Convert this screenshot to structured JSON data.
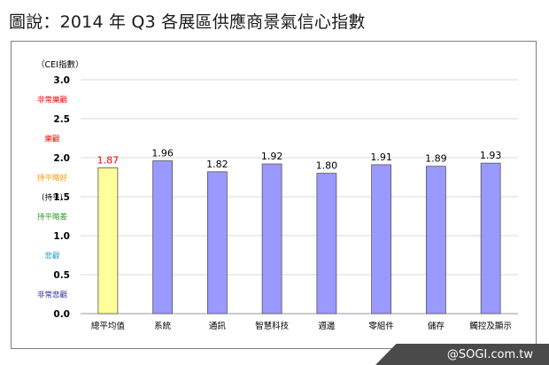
{
  "caption": "圖說：2014 年 Q3 各展區供應商景氣信心指數",
  "watermark": "@SOGI.com.tw",
  "chart_data": {
    "type": "bar",
    "title": "",
    "xlabel": "",
    "ylabel": "（CEI指數）",
    "ylim": [
      0,
      3.0
    ],
    "yticks": [
      "0.0",
      "0.5",
      "1.0",
      "1.5",
      "2.0",
      "2.5",
      "3.0"
    ],
    "grid": true,
    "categories": [
      "總平均值",
      "系統",
      "通訊",
      "智慧科技",
      "週邊",
      "零組件",
      "儲存",
      "觸控及顯示"
    ],
    "values": [
      1.87,
      1.96,
      1.82,
      1.92,
      1.8,
      1.91,
      1.89,
      1.93
    ],
    "data_labels": [
      "1.87",
      "1.96",
      "1.82",
      "1.92",
      "1.80",
      "1.91",
      "1.89",
      "1.93"
    ],
    "bar_colors": [
      "#ffff99",
      "#9999ff",
      "#9999ff",
      "#9999ff",
      "#9999ff",
      "#9999ff",
      "#9999ff",
      "#9999ff"
    ],
    "label_colors": [
      "#ff0000",
      "#000000",
      "#000000",
      "#000000",
      "#000000",
      "#000000",
      "#000000",
      "#000000"
    ],
    "zones": [
      {
        "label": "非常樂觀",
        "value": 2.75,
        "color": "#ff0000"
      },
      {
        "label": "樂觀",
        "value": 2.25,
        "color": "#ff0000"
      },
      {
        "label": "持平略好",
        "value": 1.75,
        "color": "#ff9900"
      },
      {
        "label": "(持平)",
        "value": 1.5,
        "color": "#000000"
      },
      {
        "label": "持平略差",
        "value": 1.25,
        "color": "#339933"
      },
      {
        "label": "悲觀",
        "value": 0.75,
        "color": "#3399cc"
      },
      {
        "label": "非常悲觀",
        "value": 0.25,
        "color": "#333399"
      }
    ]
  }
}
